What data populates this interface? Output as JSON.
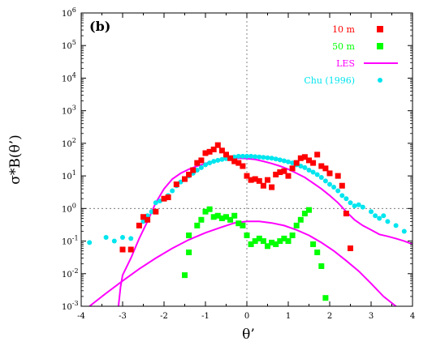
{
  "chart_data": {
    "type": "scatter",
    "panel_label": "(b)",
    "xlabel": "θ’",
    "ylabel": "σ*B(θ’)",
    "xlim": [
      -4,
      4
    ],
    "ylog": true,
    "ylim": [
      0.001,
      1000000
    ],
    "xticks": [
      "-4",
      "-3",
      "-2",
      "-1",
      "0",
      "1",
      "2",
      "3",
      "4"
    ],
    "yticks": [
      {
        "base": "10",
        "exp": "-3"
      },
      {
        "base": "10",
        "exp": "-2"
      },
      {
        "base": "10",
        "exp": "-1"
      },
      {
        "base": "10",
        "exp": "0"
      },
      {
        "base": "10",
        "exp": "1"
      },
      {
        "base": "10",
        "exp": "2"
      },
      {
        "base": "10",
        "exp": "3"
      },
      {
        "base": "10",
        "exp": "4"
      },
      {
        "base": "10",
        "exp": "5"
      },
      {
        "base": "10",
        "exp": "6"
      }
    ],
    "legend_position": "top-right",
    "series": [
      {
        "name": "10 m",
        "kind": "square",
        "color": "#ff0000",
        "points": [
          [
            -3.0,
            0.055
          ],
          [
            -2.8,
            0.055
          ],
          [
            -2.6,
            0.3
          ],
          [
            -2.5,
            0.55
          ],
          [
            -2.4,
            0.45
          ],
          [
            -2.2,
            0.8
          ],
          [
            -2.0,
            2.0
          ],
          [
            -1.9,
            2.2
          ],
          [
            -1.7,
            5.5
          ],
          [
            -1.5,
            8.0
          ],
          [
            -1.4,
            11.0
          ],
          [
            -1.3,
            15.0
          ],
          [
            -1.2,
            25.0
          ],
          [
            -1.1,
            30.0
          ],
          [
            -1.0,
            50.0
          ],
          [
            -0.9,
            55.0
          ],
          [
            -0.8,
            65.0
          ],
          [
            -0.7,
            88.0
          ],
          [
            -0.6,
            60.0
          ],
          [
            -0.5,
            45.0
          ],
          [
            -0.4,
            35.0
          ],
          [
            -0.3,
            28.0
          ],
          [
            -0.2,
            25.0
          ],
          [
            -0.1,
            20.0
          ],
          [
            0.0,
            10.0
          ],
          [
            0.1,
            7.5
          ],
          [
            0.2,
            8.0
          ],
          [
            0.3,
            7.0
          ],
          [
            0.4,
            5.0
          ],
          [
            0.5,
            7.5
          ],
          [
            0.6,
            4.5
          ],
          [
            0.7,
            11.0
          ],
          [
            0.8,
            13.0
          ],
          [
            0.9,
            14.0
          ],
          [
            1.0,
            10.0
          ],
          [
            1.1,
            17.0
          ],
          [
            1.2,
            25.0
          ],
          [
            1.3,
            35.0
          ],
          [
            1.4,
            38.0
          ],
          [
            1.5,
            30.0
          ],
          [
            1.6,
            25.0
          ],
          [
            1.7,
            45.0
          ],
          [
            1.8,
            20.0
          ],
          [
            1.9,
            17.0
          ],
          [
            2.0,
            12.0
          ],
          [
            2.2,
            10.0
          ],
          [
            2.3,
            5.0
          ],
          [
            2.4,
            0.7
          ],
          [
            2.5,
            0.06
          ]
        ]
      },
      {
        "name": "50 m",
        "kind": "square",
        "color": "#00ff00",
        "points": [
          [
            -1.5,
            0.009
          ],
          [
            -1.4,
            0.045
          ],
          [
            -1.4,
            0.15
          ],
          [
            -1.2,
            0.3
          ],
          [
            -1.1,
            0.45
          ],
          [
            -1.0,
            0.8
          ],
          [
            -0.9,
            0.95
          ],
          [
            -0.8,
            0.55
          ],
          [
            -0.7,
            0.6
          ],
          [
            -0.6,
            0.5
          ],
          [
            -0.5,
            0.55
          ],
          [
            -0.4,
            0.45
          ],
          [
            -0.3,
            0.6
          ],
          [
            -0.2,
            0.35
          ],
          [
            -0.1,
            0.3
          ],
          [
            0.0,
            0.15
          ],
          [
            0.1,
            0.08
          ],
          [
            0.2,
            0.1
          ],
          [
            0.3,
            0.12
          ],
          [
            0.4,
            0.1
          ],
          [
            0.5,
            0.07
          ],
          [
            0.6,
            0.09
          ],
          [
            0.7,
            0.08
          ],
          [
            0.8,
            0.1
          ],
          [
            0.9,
            0.12
          ],
          [
            1.0,
            0.1
          ],
          [
            1.1,
            0.15
          ],
          [
            1.2,
            0.3
          ],
          [
            1.3,
            0.45
          ],
          [
            1.4,
            0.7
          ],
          [
            1.5,
            0.9
          ],
          [
            1.6,
            0.08
          ],
          [
            1.7,
            0.045
          ],
          [
            1.8,
            0.017
          ],
          [
            1.9,
            0.0018
          ]
        ]
      },
      {
        "name": "LES",
        "kind": "line",
        "color": "#ff00ff",
        "points": [
          [
            -3.1,
            0.001
          ],
          [
            -3.05,
            0.004
          ],
          [
            -3.0,
            0.009
          ],
          [
            -2.8,
            0.03
          ],
          [
            -2.6,
            0.12
          ],
          [
            -2.4,
            0.4
          ],
          [
            -2.2,
            1.5
          ],
          [
            -2.0,
            4.0
          ],
          [
            -1.8,
            8.0
          ],
          [
            -1.6,
            12.0
          ],
          [
            -1.4,
            16.0
          ],
          [
            -1.2,
            20.0
          ],
          [
            -1.0,
            24.0
          ],
          [
            -0.8,
            28.0
          ],
          [
            -0.6,
            32.0
          ],
          [
            -0.4,
            34.0
          ],
          [
            -0.2,
            35.0
          ],
          [
            0.0,
            34.0
          ],
          [
            0.2,
            32.0
          ],
          [
            0.4,
            28.0
          ],
          [
            0.6,
            24.0
          ],
          [
            0.8,
            20.0
          ],
          [
            1.0,
            16.0
          ],
          [
            1.2,
            12.0
          ],
          [
            1.4,
            9.0
          ],
          [
            1.6,
            6.0
          ],
          [
            1.8,
            4.0
          ],
          [
            2.0,
            2.5
          ],
          [
            2.2,
            1.5
          ],
          [
            2.4,
            0.8
          ],
          [
            2.6,
            0.45
          ],
          [
            2.8,
            0.3
          ],
          [
            3.0,
            0.22
          ],
          [
            3.2,
            0.16
          ],
          [
            3.4,
            0.14
          ],
          [
            3.6,
            0.12
          ],
          [
            3.8,
            0.1
          ],
          [
            4.0,
            0.08
          ]
        ]
      },
      {
        "name": "LES",
        "show_in_legend": false,
        "kind": "line",
        "color": "#ff00ff",
        "points": [
          [
            -3.8,
            0.001
          ],
          [
            -3.4,
            0.0025
          ],
          [
            -3.0,
            0.006
          ],
          [
            -2.6,
            0.014
          ],
          [
            -2.2,
            0.03
          ],
          [
            -1.8,
            0.06
          ],
          [
            -1.4,
            0.11
          ],
          [
            -1.0,
            0.18
          ],
          [
            -0.6,
            0.27
          ],
          [
            -0.3,
            0.36
          ],
          [
            0.0,
            0.4
          ],
          [
            0.3,
            0.4
          ],
          [
            0.6,
            0.36
          ],
          [
            0.9,
            0.3
          ],
          [
            1.2,
            0.22
          ],
          [
            1.5,
            0.15
          ],
          [
            1.8,
            0.09
          ],
          [
            2.1,
            0.05
          ],
          [
            2.4,
            0.025
          ],
          [
            2.7,
            0.012
          ],
          [
            3.0,
            0.005
          ],
          [
            3.3,
            0.002
          ],
          [
            3.6,
            0.001
          ]
        ]
      },
      {
        "name": "Chu (1996)",
        "kind": "circle",
        "color": "#00e5ee",
        "points": [
          [
            -3.8,
            0.09
          ],
          [
            -3.4,
            0.13
          ],
          [
            -3.2,
            0.1
          ],
          [
            -3.0,
            0.13
          ],
          [
            -2.8,
            0.12
          ],
          [
            -2.6,
            0.3
          ],
          [
            -2.5,
            0.4
          ],
          [
            -2.4,
            0.6
          ],
          [
            -2.3,
            0.8
          ],
          [
            -2.2,
            1.5
          ],
          [
            -2.1,
            1.7
          ],
          [
            -2.0,
            2.0
          ],
          [
            -1.9,
            2.5
          ],
          [
            -1.8,
            3.5
          ],
          [
            -1.7,
            5.0
          ],
          [
            -1.6,
            6.5
          ],
          [
            -1.5,
            8.0
          ],
          [
            -1.4,
            10.0
          ],
          [
            -1.3,
            12.0
          ],
          [
            -1.2,
            15.0
          ],
          [
            -1.1,
            18.0
          ],
          [
            -1.0,
            22.0
          ],
          [
            -0.9,
            25.0
          ],
          [
            -0.8,
            28.0
          ],
          [
            -0.7,
            30.0
          ],
          [
            -0.6,
            32.0
          ],
          [
            -0.5,
            34.0
          ],
          [
            -0.4,
            36.0
          ],
          [
            -0.3,
            38.0
          ],
          [
            -0.2,
            40.0
          ],
          [
            -0.1,
            40.0
          ],
          [
            0.0,
            40.0
          ],
          [
            0.1,
            40.0
          ],
          [
            0.2,
            39.0
          ],
          [
            0.3,
            38.0
          ],
          [
            0.4,
            37.0
          ],
          [
            0.5,
            36.0
          ],
          [
            0.6,
            35.0
          ],
          [
            0.7,
            33.0
          ],
          [
            0.8,
            31.0
          ],
          [
            0.9,
            29.0
          ],
          [
            1.0,
            27.0
          ],
          [
            1.1,
            25.0
          ],
          [
            1.2,
            22.0
          ],
          [
            1.3,
            20.0
          ],
          [
            1.4,
            18.0
          ],
          [
            1.5,
            15.0
          ],
          [
            1.6,
            13.0
          ],
          [
            1.7,
            11.0
          ],
          [
            1.8,
            9.0
          ],
          [
            1.9,
            7.0
          ],
          [
            2.0,
            5.5
          ],
          [
            2.1,
            4.5
          ],
          [
            2.2,
            3.5
          ],
          [
            2.3,
            2.5
          ],
          [
            2.4,
            2.0
          ],
          [
            2.5,
            1.5
          ],
          [
            2.6,
            1.2
          ],
          [
            2.7,
            1.3
          ],
          [
            2.8,
            1.1
          ],
          [
            3.0,
            0.8
          ],
          [
            3.1,
            0.6
          ],
          [
            3.2,
            0.5
          ],
          [
            3.3,
            0.6
          ],
          [
            3.4,
            0.4
          ],
          [
            3.6,
            0.3
          ],
          [
            3.8,
            0.2
          ]
        ]
      }
    ]
  }
}
